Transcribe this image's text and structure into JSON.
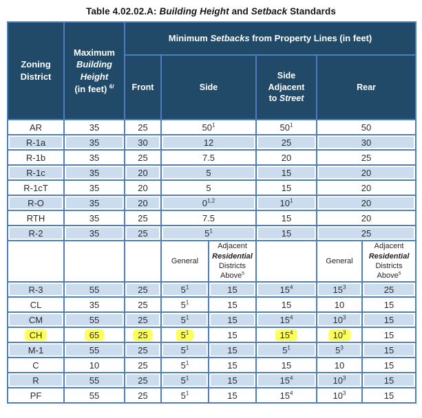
{
  "title": {
    "t1": "Table 4.02.02.A: ",
    "t2": "Building Height",
    "t3": " and ",
    "t4": "Setback",
    "t5": " Standards"
  },
  "header": {
    "zoning_line1": "Zoning",
    "zoning_line2": "District",
    "max_l1": "Maximum",
    "max_l2": "Building",
    "max_l3": "Height",
    "max_l4": "(in feet)",
    "max_sup": "6/",
    "banner_t1": "Minimum ",
    "banner_t2": "Setbacks",
    "banner_t3": " from Property Lines (in feet)",
    "front": "Front",
    "side": "Side",
    "side_adj_l1": "Side",
    "side_adj_l2": "Adjacent",
    "side_adj_t1": "to ",
    "side_adj_t2": "Street",
    "rear": "Rear",
    "sub_general": "General",
    "sub_adj_t1": "Adjacent ",
    "sub_adj_t2": "Residential",
    "sub_adj_t3": " Districts Above",
    "sub_adj_sup": "5"
  },
  "columns_upper": [
    "Zoning District",
    "Maximum Building Height (in feet)",
    "Front",
    "Side",
    "Side Adjacent to Street",
    "Rear"
  ],
  "columns_lower": [
    "Zoning District",
    "Maximum Building Height (in feet)",
    "Front",
    "Side General",
    "Side Adjacent Residential Districts Above",
    "Side Adjacent to Street",
    "Rear General",
    "Rear Adjacent Residential Districts Above"
  ],
  "rows_upper": [
    {
      "cells": [
        "AR",
        "35",
        "25",
        "50^1",
        "50^1",
        "50"
      ]
    },
    {
      "cells": [
        "R-1a",
        "35",
        "30",
        "12",
        "25",
        "30"
      ]
    },
    {
      "cells": [
        "R-1b",
        "35",
        "25",
        "7.5",
        "20",
        "25"
      ]
    },
    {
      "cells": [
        "R-1c",
        "35",
        "20",
        "5",
        "15",
        "20"
      ]
    },
    {
      "cells": [
        "R-1cT",
        "35",
        "20",
        "5",
        "15",
        "20"
      ]
    },
    {
      "cells": [
        "R-O",
        "35",
        "20",
        "0^1,2",
        "10^1",
        "20"
      ]
    },
    {
      "cells": [
        "RTH",
        "35",
        "25",
        "7.5",
        "15",
        "20"
      ]
    },
    {
      "cells": [
        "R-2",
        "35",
        "25",
        "5^1",
        "15",
        "25"
      ]
    }
  ],
  "rows_lower": [
    {
      "cells": [
        "R-3",
        "55",
        "25",
        "5^1",
        "15",
        "15^4",
        "15^3",
        "25"
      ]
    },
    {
      "cells": [
        "CL",
        "35",
        "25",
        "5^1",
        "15",
        "15",
        "10",
        "15"
      ]
    },
    {
      "cells": [
        "CM",
        "55",
        "25",
        "5^1",
        "15",
        "15^4",
        "10^3",
        "15"
      ]
    },
    {
      "cells": [
        "CH",
        "65",
        "25",
        "5^1",
        "15",
        "15^4",
        "10^3",
        "15"
      ],
      "highlight": [
        0,
        1,
        2,
        3,
        5,
        6
      ]
    },
    {
      "cells": [
        "M-1",
        "55",
        "25",
        "5^1",
        "15",
        "5^1",
        "5^3",
        "15"
      ]
    },
    {
      "cells": [
        "C",
        "10",
        "25",
        "5^1",
        "15",
        "15",
        "10",
        "15"
      ]
    },
    {
      "cells": [
        "R",
        "55",
        "25",
        "5^1",
        "15",
        "15^4",
        "10^3",
        "15"
      ]
    },
    {
      "cells": [
        "PF",
        "55",
        "25",
        "5^1",
        "15",
        "15^4",
        "10^3",
        "15"
      ]
    }
  ],
  "colors": {
    "header_navy": "#214a69",
    "grid_blue": "#4d7ebf",
    "band_blue": "#cbdcee",
    "highlight_yellow": "#ffff5a"
  }
}
